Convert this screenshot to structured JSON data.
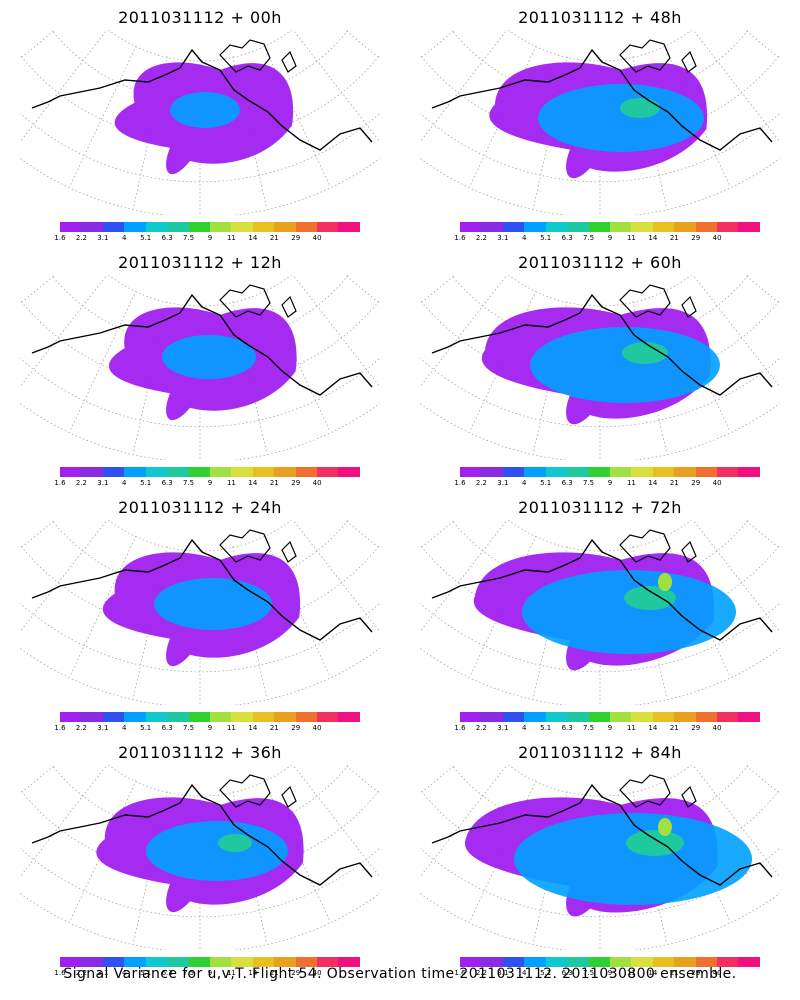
{
  "panels": [
    {
      "title": "2011031112 + 00h",
      "level": 0
    },
    {
      "title": "2011031112 + 48h",
      "level": 4
    },
    {
      "title": "2011031112 + 12h",
      "level": 1
    },
    {
      "title": "2011031112 + 60h",
      "level": 5
    },
    {
      "title": "2011031112 + 24h",
      "level": 2
    },
    {
      "title": "2011031112 + 72h",
      "level": 6
    },
    {
      "title": "2011031112 + 36h",
      "level": 3
    },
    {
      "title": "2011031112 + 84h",
      "level": 7
    }
  ],
  "colorbar": {
    "colors": [
      "#a020f0",
      "#8a2be2",
      "#3050f0",
      "#00a0ff",
      "#10c8d0",
      "#20c8a0",
      "#30d030",
      "#a0e040",
      "#d8e040",
      "#e8c020",
      "#e8a020",
      "#f07030",
      "#f03060",
      "#f01080"
    ],
    "ticks": [
      "1.6",
      "2.2",
      "3.1",
      "4",
      "5.1",
      "6.3",
      "7.5",
      "9",
      "11",
      "14",
      "21",
      "29",
      "40"
    ]
  },
  "caption": "Signal Variance for u,v,T. Flight 54. Observation time 2011031112. 2011030800 ensemble."
}
